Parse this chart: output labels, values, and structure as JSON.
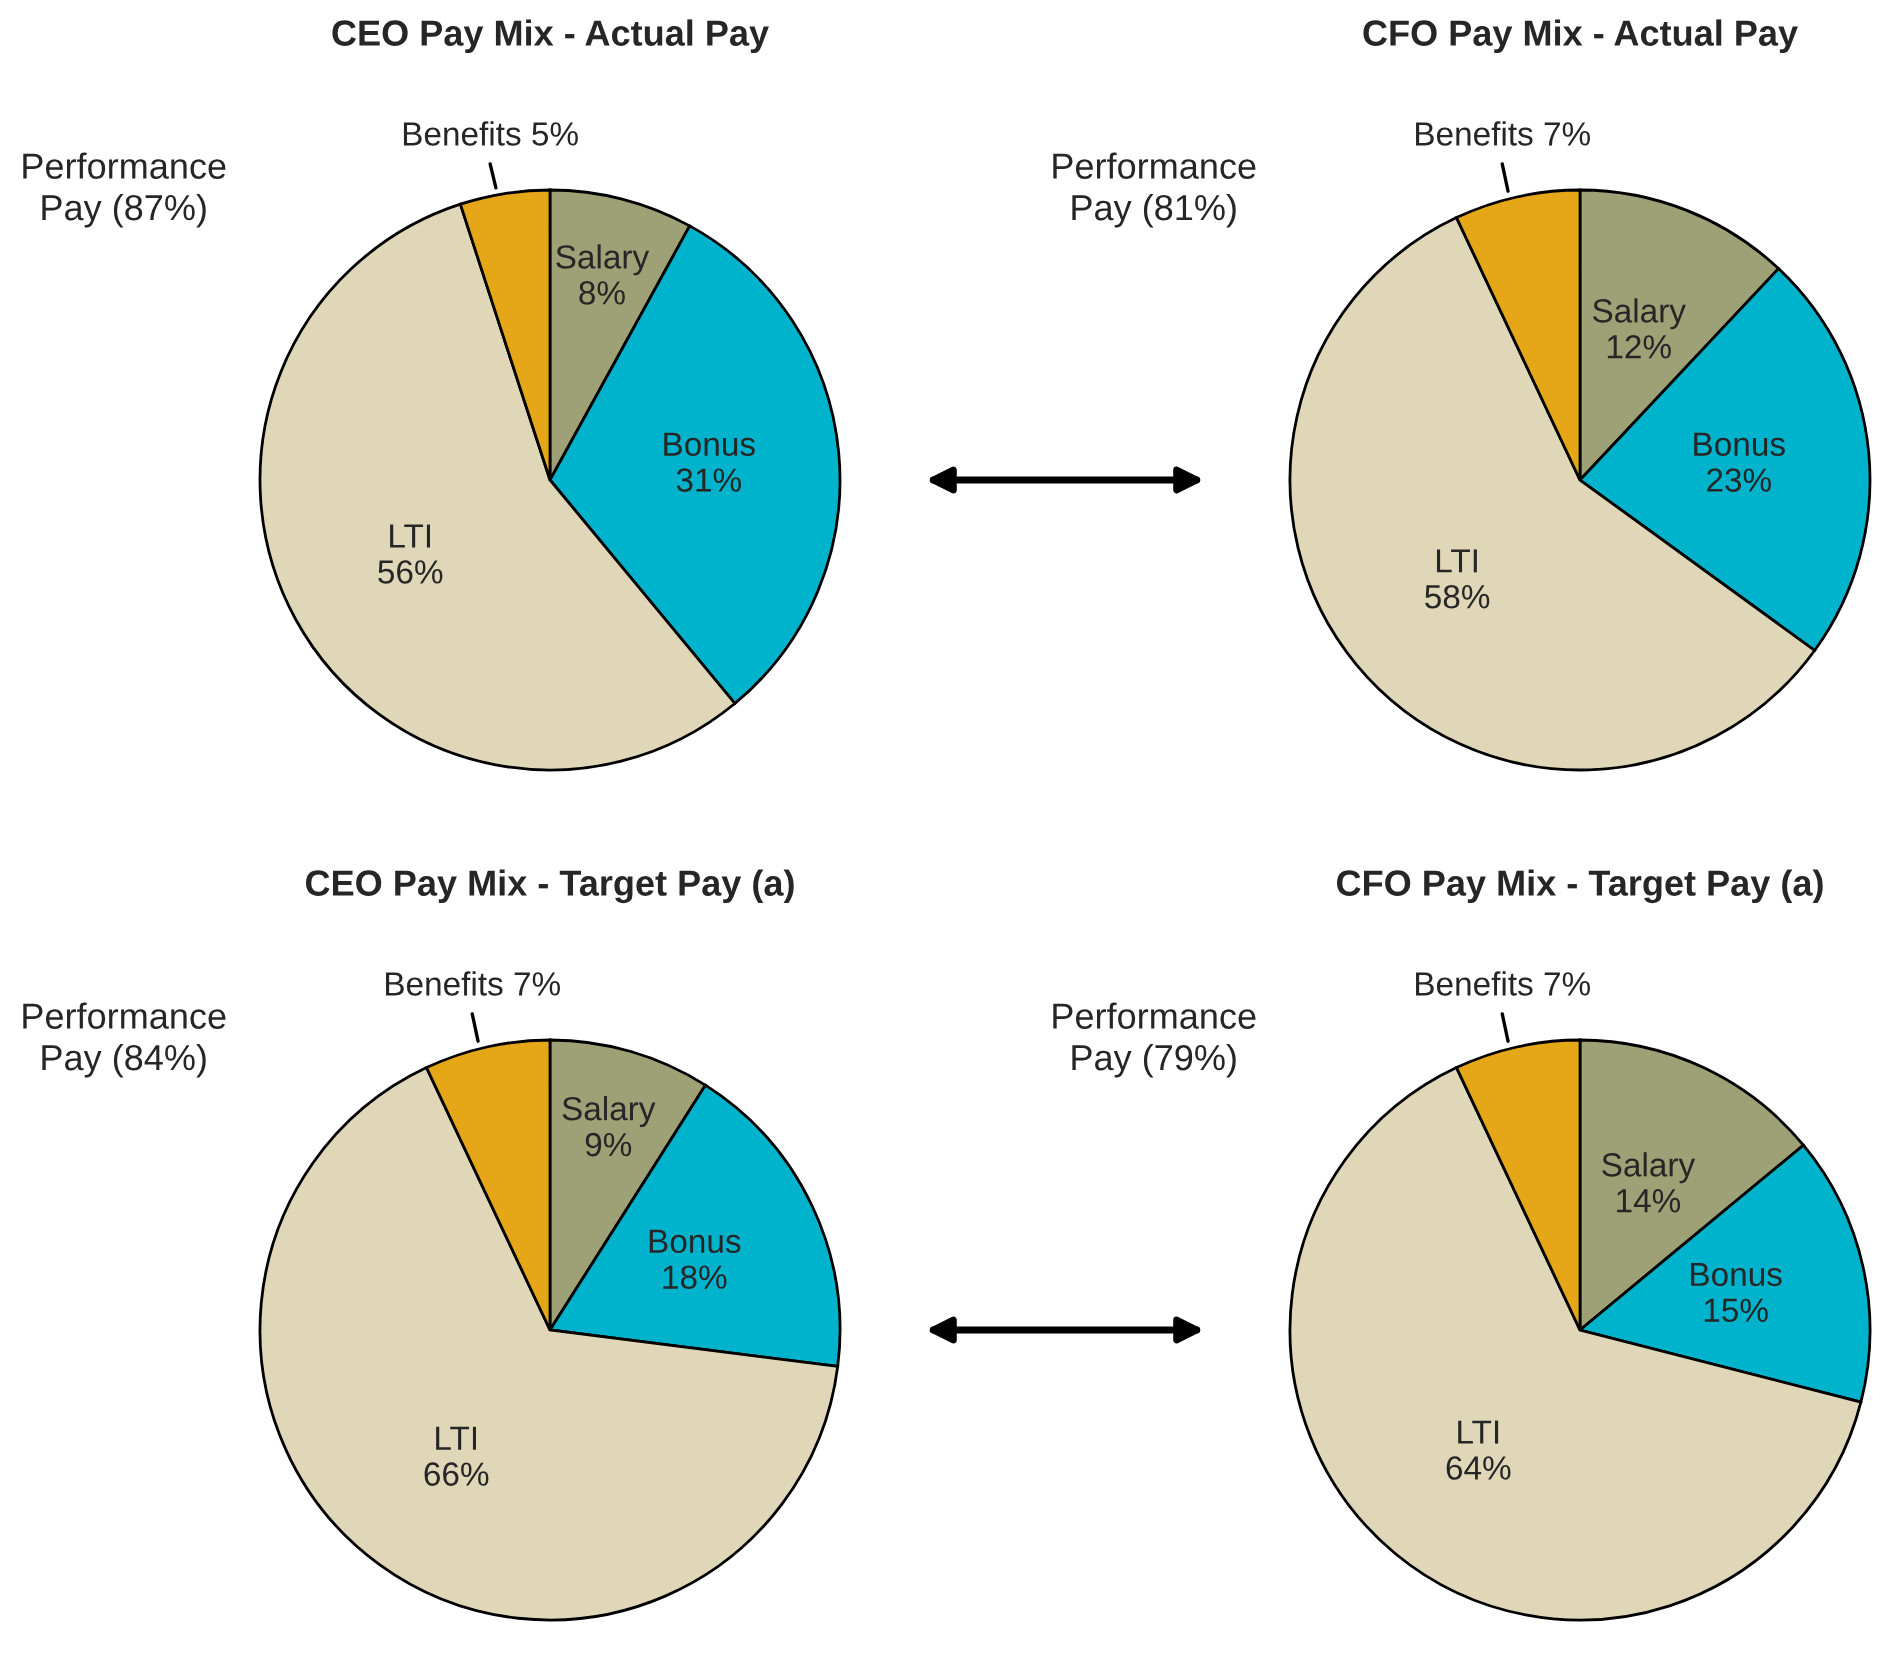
{
  "chart_data": [
    {
      "type": "pie",
      "title": "CEO Pay Mix - Actual Pay",
      "categories": [
        "Salary",
        "Bonus",
        "LTI",
        "Benefits"
      ],
      "values": [
        8,
        31,
        56,
        5
      ],
      "value_labels": [
        "8%",
        "31%",
        "56%",
        "5%"
      ],
      "colors": [
        "#9ea075",
        "#00b3cc",
        "#e0d7b9",
        "#e5a618"
      ],
      "annotations": [
        "Performance Pay (87%)"
      ]
    },
    {
      "type": "pie",
      "title": "CFO Pay Mix - Actual Pay",
      "categories": [
        "Salary",
        "Bonus",
        "LTI",
        "Benefits"
      ],
      "values": [
        12,
        23,
        58,
        7
      ],
      "value_labels": [
        "12%",
        "23%",
        "58%",
        "7%"
      ],
      "colors": [
        "#9ea075",
        "#00b3cc",
        "#e0d7b9",
        "#e5a618"
      ],
      "annotations": [
        "Performance Pay (81%)"
      ]
    },
    {
      "type": "pie",
      "title": "CEO Pay Mix - Target Pay (a)",
      "categories": [
        "Salary",
        "Bonus",
        "LTI",
        "Benefits"
      ],
      "values": [
        9,
        18,
        66,
        7
      ],
      "value_labels": [
        "9%",
        "18%",
        "66%",
        "7%"
      ],
      "colors": [
        "#9ea075",
        "#00b3cc",
        "#e0d7b9",
        "#e5a618"
      ],
      "annotations": [
        "Performance Pay (84%)"
      ]
    },
    {
      "type": "pie",
      "title": "CFO Pay Mix - Target Pay (a)",
      "categories": [
        "Salary",
        "Bonus",
        "LTI",
        "Benefits"
      ],
      "values": [
        14,
        15,
        64,
        7
      ],
      "value_labels": [
        "14%",
        "15%",
        "64%",
        "7%"
      ],
      "colors": [
        "#9ea075",
        "#00b3cc",
        "#e0d7b9",
        "#e5a618"
      ],
      "annotations": [
        "Performance Pay (79%)"
      ]
    }
  ]
}
